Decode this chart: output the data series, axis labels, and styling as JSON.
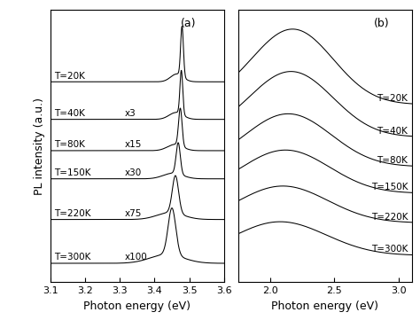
{
  "panel_a": {
    "label": "(a)",
    "xlabel": "Photon energy (eV)",
    "ylabel": "PL intensity (a.u.)",
    "xlim": [
      3.1,
      3.6
    ],
    "xticks": [
      3.1,
      3.2,
      3.3,
      3.4,
      3.5,
      3.6
    ],
    "temperatures": [
      "T=20K",
      "T=40K",
      "T=80K",
      "T=150K",
      "T=220K",
      "T=300K"
    ],
    "multipliers": [
      "",
      "x3",
      "x15",
      "x30",
      "x75",
      "x100"
    ],
    "peak_centers": [
      3.479,
      3.477,
      3.474,
      3.468,
      3.46,
      3.45
    ],
    "peak_widths_narrow": [
      0.004,
      0.004,
      0.005,
      0.006,
      0.009,
      0.011
    ],
    "peak_widths_broad": [
      0.018,
      0.02,
      0.022,
      0.028,
      0.038,
      0.048
    ],
    "offsets": [
      6.2,
      5.0,
      4.0,
      3.1,
      1.8,
      0.4
    ],
    "peak_heights": [
      1.6,
      1.4,
      1.2,
      1.0,
      1.2,
      1.5
    ],
    "broad_heights": [
      0.25,
      0.22,
      0.2,
      0.18,
      0.22,
      0.28
    ]
  },
  "panel_b": {
    "label": "(b)",
    "xlabel": "Photon energy (eV)",
    "xlim": [
      1.75,
      3.1
    ],
    "xticks": [
      2.0,
      2.5,
      3.0
    ],
    "temperatures": [
      "T=20K",
      "T=40K",
      "T=80K",
      "T=150K",
      "T=220K",
      "T=300K"
    ],
    "peak_centers": [
      2.21,
      2.2,
      2.18,
      2.16,
      2.14,
      2.12
    ],
    "peak_widths": [
      0.3,
      0.31,
      0.32,
      0.33,
      0.34,
      0.35
    ],
    "low_tail_offsets": [
      0.3,
      0.3,
      0.28,
      0.26,
      0.24,
      0.22
    ],
    "low_tail_widths": [
      0.28,
      0.28,
      0.28,
      0.28,
      0.28,
      0.28
    ],
    "low_tail_fracs": [
      0.18,
      0.18,
      0.18,
      0.18,
      0.18,
      0.18
    ],
    "offsets": [
      5.8,
      4.7,
      3.7,
      2.8,
      1.8,
      0.7
    ],
    "peak_heights": [
      2.3,
      2.0,
      1.6,
      1.3,
      1.1,
      1.0
    ]
  },
  "line_color": "#000000",
  "bg_color": "#ffffff",
  "fontsize_label": 9,
  "fontsize_tick": 8,
  "fontsize_annot": 7.5
}
